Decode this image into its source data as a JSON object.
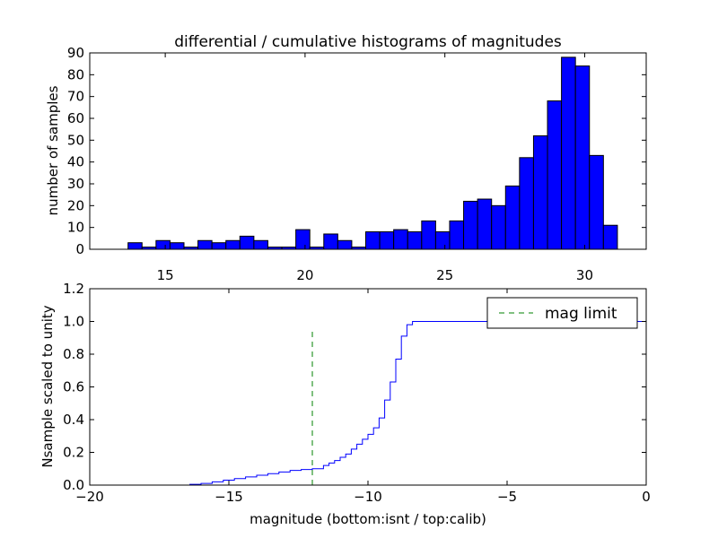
{
  "chart_data": [
    {
      "type": "bar",
      "panel": "top",
      "title": "differential / cumulative histograms of magnitudes",
      "xlabel": "",
      "ylabel": "number of samples",
      "xlim": [
        12.3,
        32.2
      ],
      "ylim": [
        0,
        90
      ],
      "x_ticks": [
        15,
        20,
        25,
        30
      ],
      "x_tick_labels": [
        "15",
        "20",
        "25",
        "30"
      ],
      "y_ticks": [
        0,
        10,
        20,
        30,
        40,
        50,
        60,
        70,
        80,
        90
      ],
      "y_tick_labels": [
        "0",
        "10",
        "20",
        "30",
        "40",
        "50",
        "60",
        "70",
        "80",
        "90"
      ],
      "x_ticks_position": "bottom labels, ticks on top",
      "bar_color": "#0000ff",
      "bin_edges": [
        13.67,
        14.17,
        14.67,
        15.17,
        15.67,
        16.17,
        16.67,
        17.17,
        17.67,
        18.17,
        18.67,
        19.17,
        19.67,
        20.17,
        20.67,
        21.17,
        21.67,
        22.17,
        22.67,
        23.17,
        23.67,
        24.17,
        24.67,
        25.17,
        25.67,
        26.17,
        26.67,
        27.17,
        27.67,
        28.17,
        28.67,
        29.17,
        29.67,
        30.17,
        30.67,
        31.17
      ],
      "values": [
        3,
        1,
        4,
        3,
        1,
        4,
        3,
        4,
        6,
        4,
        1,
        1,
        9,
        1,
        7,
        4,
        1,
        8,
        8,
        9,
        8,
        13,
        8,
        13,
        22,
        23,
        20,
        29,
        42,
        52,
        68,
        88,
        84,
        43,
        11
      ],
      "grid": false
    },
    {
      "type": "line",
      "panel": "bottom",
      "title": "",
      "xlabel": "magnitude (bottom:isnt / top:calib)",
      "ylabel": "Nsample scaled to unity",
      "xlim": [
        -20,
        0
      ],
      "ylim": [
        0,
        1.2
      ],
      "x_ticks": [
        -20,
        -15,
        -10,
        -5,
        0
      ],
      "x_tick_labels": [
        "−20",
        "−15",
        "−10",
        "−5",
        "0"
      ],
      "y_ticks": [
        0,
        0.2,
        0.4,
        0.6,
        0.8,
        1.0,
        1.2
      ],
      "y_tick_labels": [
        "0.0",
        "0.2",
        "0.4",
        "0.6",
        "0.8",
        "1.0",
        "1.2"
      ],
      "grid": false,
      "legend_position": "top-right",
      "series": [
        {
          "name": "",
          "style": "step",
          "color": "#0000ff",
          "x": [
            -18.6,
            -16.4,
            -16.0,
            -15.6,
            -15.2,
            -14.8,
            -14.4,
            -14.0,
            -13.6,
            -13.2,
            -12.8,
            -12.4,
            -12.0,
            -11.6,
            -11.4,
            -11.2,
            -11.0,
            -10.8,
            -10.6,
            -10.4,
            -10.2,
            -10.0,
            -9.8,
            -9.6,
            -9.4,
            -9.2,
            -9.0,
            -8.8,
            -8.6,
            -8.4,
            -8.2,
            -8.0,
            -7.8,
            -0.05,
            0.0
          ],
          "y": [
            0.0,
            0.005,
            0.01,
            0.02,
            0.03,
            0.04,
            0.05,
            0.06,
            0.07,
            0.08,
            0.09,
            0.095,
            0.1,
            0.12,
            0.135,
            0.15,
            0.17,
            0.19,
            0.22,
            0.25,
            0.28,
            0.31,
            0.35,
            0.41,
            0.52,
            0.63,
            0.77,
            0.91,
            0.98,
            1.0,
            1.0,
            1.0,
            1.0,
            1.0,
            0.0
          ]
        },
        {
          "name": "mag limit",
          "style": "dashed",
          "color": "#008000",
          "x": [
            -12.0,
            -12.0
          ],
          "y": [
            0.0,
            0.96
          ]
        }
      ],
      "legend": [
        {
          "label": "mag limit",
          "color": "#008000",
          "style": "dashed"
        }
      ]
    }
  ]
}
